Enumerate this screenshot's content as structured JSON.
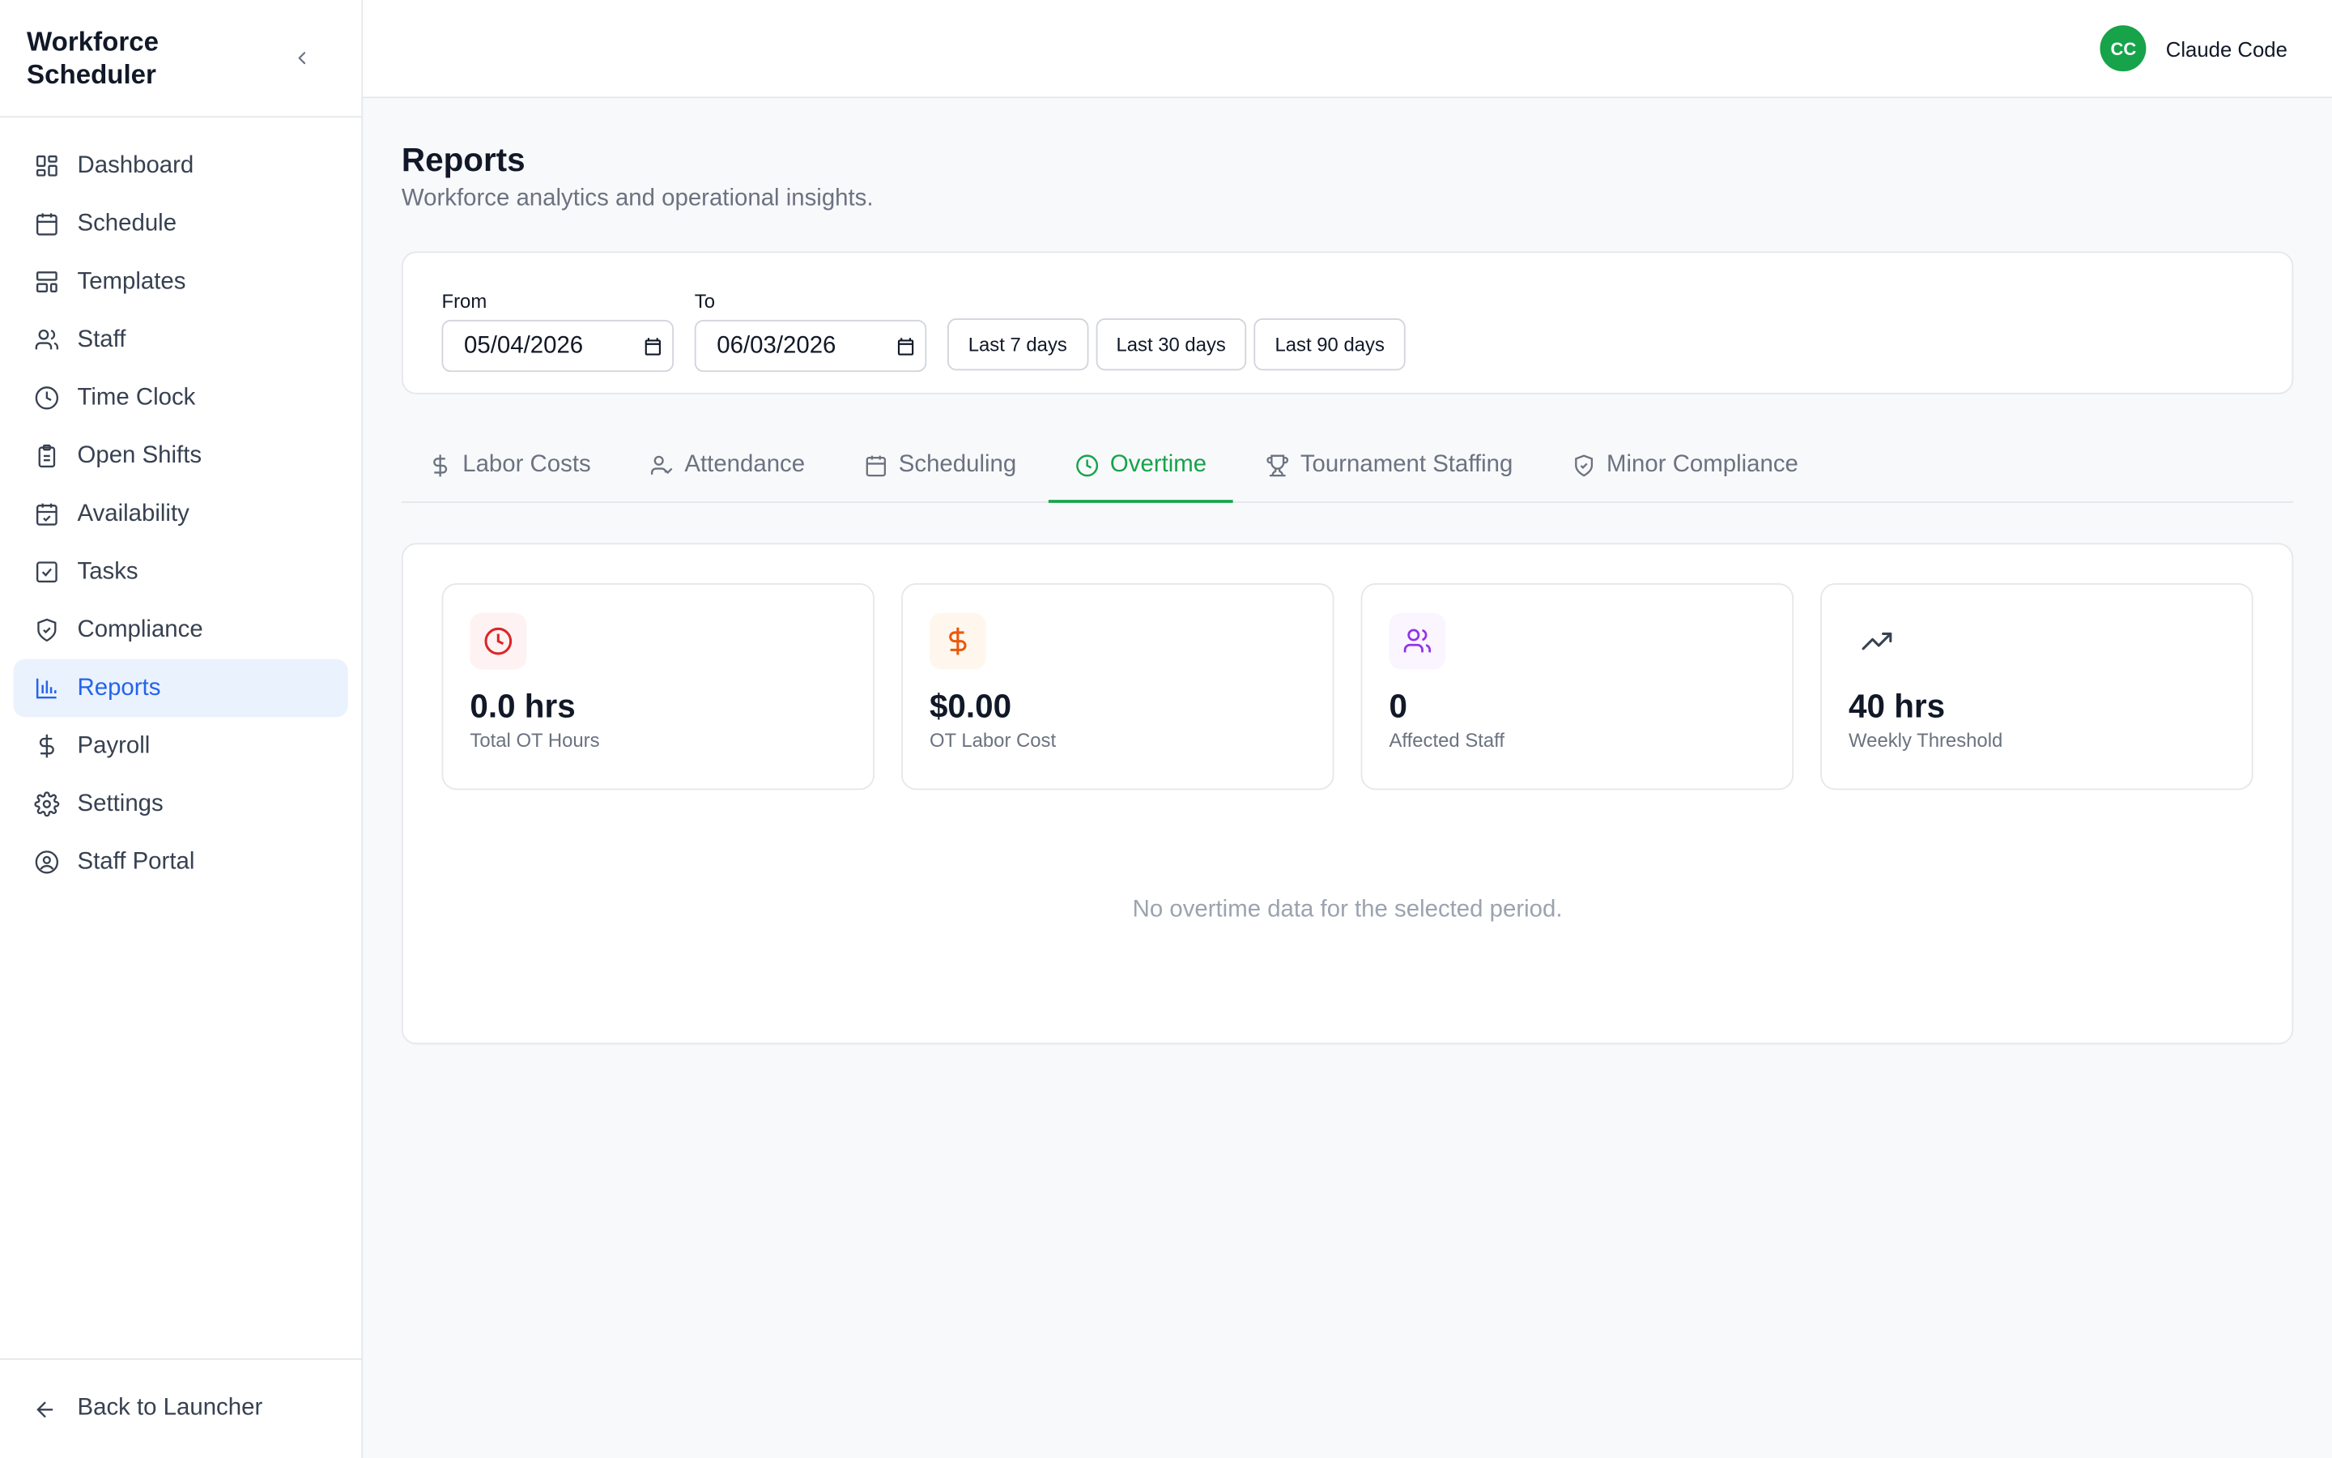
{
  "app": {
    "title": "Workforce Scheduler"
  },
  "sidebar": {
    "items": [
      {
        "label": "Dashboard",
        "icon": "dashboard-icon"
      },
      {
        "label": "Schedule",
        "icon": "calendar-icon"
      },
      {
        "label": "Templates",
        "icon": "templates-icon"
      },
      {
        "label": "Staff",
        "icon": "users-icon"
      },
      {
        "label": "Time Clock",
        "icon": "clock-icon"
      },
      {
        "label": "Open Shifts",
        "icon": "clipboard-icon"
      },
      {
        "label": "Availability",
        "icon": "calendar-check-icon"
      },
      {
        "label": "Tasks",
        "icon": "checkbox-icon"
      },
      {
        "label": "Compliance",
        "icon": "shield-icon"
      },
      {
        "label": "Reports",
        "icon": "bar-chart-icon",
        "active": true
      },
      {
        "label": "Payroll",
        "icon": "dollar-icon"
      },
      {
        "label": "Settings",
        "icon": "gear-icon"
      },
      {
        "label": "Staff Portal",
        "icon": "user-circle-icon"
      }
    ],
    "footer": "Back to Launcher"
  },
  "user": {
    "initials": "CC",
    "name": "Claude Code",
    "avatar_color": "#16a34a"
  },
  "page": {
    "title": "Reports",
    "subtitle": "Workforce analytics and operational insights."
  },
  "filters": {
    "from_label": "From",
    "from_value": "05/04/2026",
    "to_label": "To",
    "to_value": "06/03/2026",
    "ranges": [
      "Last 7 days",
      "Last 30 days",
      "Last 90 days"
    ]
  },
  "tabs": [
    {
      "label": "Labor Costs",
      "icon": "dollar-icon"
    },
    {
      "label": "Attendance",
      "icon": "user-check-icon"
    },
    {
      "label": "Scheduling",
      "icon": "calendar-icon"
    },
    {
      "label": "Overtime",
      "icon": "clock-icon",
      "active": true
    },
    {
      "label": "Tournament Staffing",
      "icon": "trophy-icon"
    },
    {
      "label": "Minor Compliance",
      "icon": "shield-check-icon"
    }
  ],
  "stats": [
    {
      "value": "0.0 hrs",
      "label": "Total OT Hours",
      "icon": "clock-icon",
      "color": "#dc2626"
    },
    {
      "value": "$0.00",
      "label": "OT Labor Cost",
      "icon": "dollar-icon",
      "color": "#ea580c"
    },
    {
      "value": "0",
      "label": "Affected Staff",
      "icon": "users-icon",
      "color": "#9333ea"
    },
    {
      "value": "40 hrs",
      "label": "Weekly Threshold",
      "icon": "trending-up-icon",
      "color": "#374151"
    }
  ],
  "empty_message": "No overtime data for the selected period.",
  "colors": {
    "accent": "#16a34a",
    "nav_active": "#2563eb"
  }
}
